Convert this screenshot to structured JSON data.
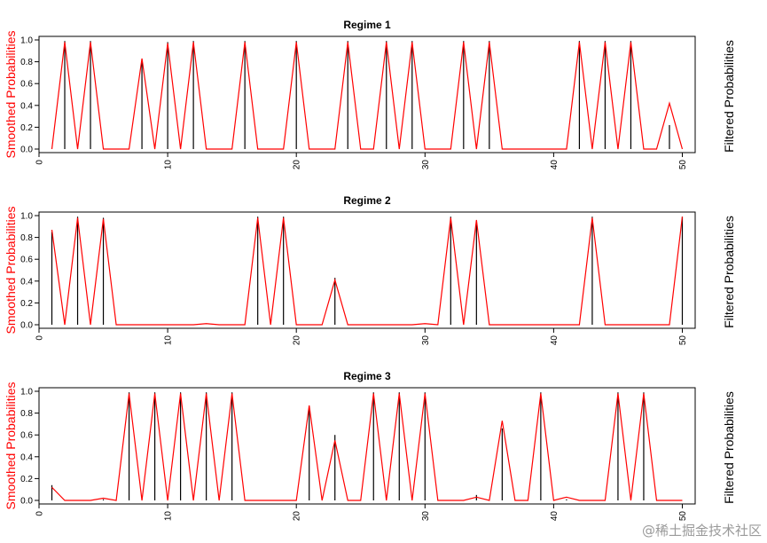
{
  "watermark": "@稀土掘金技术社区",
  "chart_data": [
    {
      "type": "line",
      "title": "Regime 1",
      "left_label": "Smoothed Probabilities",
      "right_label": "Filtered Probabilities",
      "left_label_color": "#ff0000",
      "smoothed_color": "#ff0000",
      "filtered_color": "#000000",
      "xlim": [
        0,
        51
      ],
      "ylim": [
        0,
        1
      ],
      "xticks": [
        0,
        10,
        20,
        30,
        40,
        50
      ],
      "yticks": [
        0.0,
        0.2,
        0.4,
        0.6,
        0.8,
        1.0
      ],
      "x": [
        1,
        2,
        3,
        4,
        5,
        6,
        7,
        8,
        9,
        10,
        11,
        12,
        13,
        14,
        15,
        16,
        17,
        18,
        19,
        20,
        21,
        22,
        23,
        24,
        25,
        26,
        27,
        28,
        29,
        30,
        31,
        32,
        33,
        34,
        35,
        36,
        37,
        38,
        39,
        40,
        41,
        42,
        43,
        44,
        45,
        46,
        47,
        48,
        49,
        50
      ],
      "series": [
        {
          "name": "Smoothed Probabilities",
          "values": [
            0,
            0.98,
            0,
            0.98,
            0,
            0,
            0,
            0.83,
            0,
            0.97,
            0,
            0.98,
            0,
            0,
            0,
            0.98,
            0,
            0,
            0,
            0.98,
            0,
            0,
            0,
            0.98,
            0,
            0,
            0.98,
            0,
            0.98,
            0,
            0,
            0,
            0.98,
            0,
            0.98,
            0,
            0,
            0,
            0,
            0,
            0,
            0.98,
            0,
            0.98,
            0,
            0.98,
            0,
            0,
            0.42,
            0
          ]
        },
        {
          "name": "Filtered Probabilities",
          "values": [
            0,
            0.99,
            0,
            0.99,
            0,
            0,
            0,
            0.8,
            0,
            0.98,
            0,
            0.99,
            0,
            0,
            0,
            0.99,
            0,
            0,
            0,
            0.99,
            0,
            0,
            0,
            0.99,
            0,
            0,
            0.99,
            0,
            0.99,
            0,
            0,
            0,
            0.99,
            0,
            0.99,
            0,
            0,
            0,
            0,
            0,
            0,
            0.99,
            0,
            0.99,
            0,
            0.99,
            0,
            0,
            0.22,
            0
          ]
        }
      ]
    },
    {
      "type": "line",
      "title": "Regime 2",
      "left_label": "Smoothed Probabilities",
      "right_label": "Filtered Probabilities",
      "left_label_color": "#ff0000",
      "smoothed_color": "#ff0000",
      "filtered_color": "#000000",
      "xlim": [
        0,
        51
      ],
      "ylim": [
        0,
        1
      ],
      "xticks": [
        0,
        10,
        20,
        30,
        40,
        50
      ],
      "yticks": [
        0.0,
        0.2,
        0.4,
        0.6,
        0.8,
        1.0
      ],
      "x": [
        1,
        2,
        3,
        4,
        5,
        6,
        7,
        8,
        9,
        10,
        11,
        12,
        13,
        14,
        15,
        16,
        17,
        18,
        19,
        20,
        21,
        22,
        23,
        24,
        25,
        26,
        27,
        28,
        29,
        30,
        31,
        32,
        33,
        34,
        35,
        36,
        37,
        38,
        39,
        40,
        41,
        42,
        43,
        44,
        45,
        46,
        47,
        48,
        49,
        50
      ],
      "series": [
        {
          "name": "Smoothed Probabilities",
          "values": [
            0.87,
            0,
            0.98,
            0,
            0.97,
            0,
            0,
            0,
            0,
            0,
            0,
            0,
            0.01,
            0,
            0,
            0,
            0.98,
            0,
            0.98,
            0,
            0,
            0,
            0.41,
            0,
            0,
            0,
            0,
            0,
            0,
            0.01,
            0,
            0.98,
            0,
            0.96,
            0,
            0,
            0,
            0,
            0,
            0,
            0,
            0,
            0.98,
            0,
            0,
            0,
            0,
            0,
            0,
            0.99
          ]
        },
        {
          "name": "Filtered Probabilities",
          "values": [
            0.85,
            0,
            0.99,
            0,
            0.98,
            0,
            0,
            0,
            0,
            0,
            0,
            0,
            0,
            0,
            0,
            0,
            0.99,
            0,
            0.99,
            0,
            0,
            0,
            0.43,
            0,
            0,
            0,
            0,
            0,
            0,
            0,
            0,
            0.99,
            0,
            0.95,
            0,
            0,
            0,
            0,
            0,
            0,
            0,
            0,
            0.99,
            0,
            0,
            0,
            0,
            0,
            0,
            0.99
          ]
        }
      ]
    },
    {
      "type": "line",
      "title": "Regime 3",
      "left_label": "Smoothed Probabilities",
      "right_label": "Filtered Probabilities",
      "left_label_color": "#ff0000",
      "smoothed_color": "#ff0000",
      "filtered_color": "#000000",
      "xlim": [
        0,
        51
      ],
      "ylim": [
        0,
        1
      ],
      "xticks": [
        0,
        10,
        20,
        30,
        40,
        50
      ],
      "yticks": [
        0.0,
        0.2,
        0.4,
        0.6,
        0.8,
        1.0
      ],
      "x": [
        1,
        2,
        3,
        4,
        5,
        6,
        7,
        8,
        9,
        10,
        11,
        12,
        13,
        14,
        15,
        16,
        17,
        18,
        19,
        20,
        21,
        22,
        23,
        24,
        25,
        26,
        27,
        28,
        29,
        30,
        31,
        32,
        33,
        34,
        35,
        36,
        37,
        38,
        39,
        40,
        41,
        42,
        43,
        44,
        45,
        46,
        47,
        48,
        49,
        50
      ],
      "series": [
        {
          "name": "Smoothed Probabilities",
          "values": [
            0.12,
            0,
            0,
            0,
            0.02,
            0,
            0.98,
            0,
            0.98,
            0,
            0.98,
            0,
            0.98,
            0,
            0.98,
            0,
            0,
            0,
            0,
            0,
            0.87,
            0,
            0.55,
            0,
            0,
            0.98,
            0,
            0.98,
            0,
            0.98,
            0,
            0,
            0,
            0.03,
            0,
            0.73,
            0,
            0,
            0.98,
            0,
            0.03,
            0,
            0,
            0,
            0.98,
            0,
            0.98,
            0,
            0,
            0
          ]
        },
        {
          "name": "Filtered Probabilities",
          "values": [
            0.14,
            0,
            0,
            0,
            0.01,
            0,
            0.99,
            0,
            0.99,
            0,
            0.99,
            0,
            0.99,
            0,
            0.99,
            0,
            0,
            0,
            0,
            0,
            0.84,
            0,
            0.6,
            0,
            0,
            0.99,
            0,
            0.99,
            0,
            0.99,
            0,
            0,
            0,
            0.05,
            0,
            0.66,
            0,
            0,
            0.99,
            0,
            0.01,
            0,
            0,
            0,
            0.99,
            0,
            0.99,
            0,
            0,
            0
          ]
        }
      ]
    }
  ]
}
